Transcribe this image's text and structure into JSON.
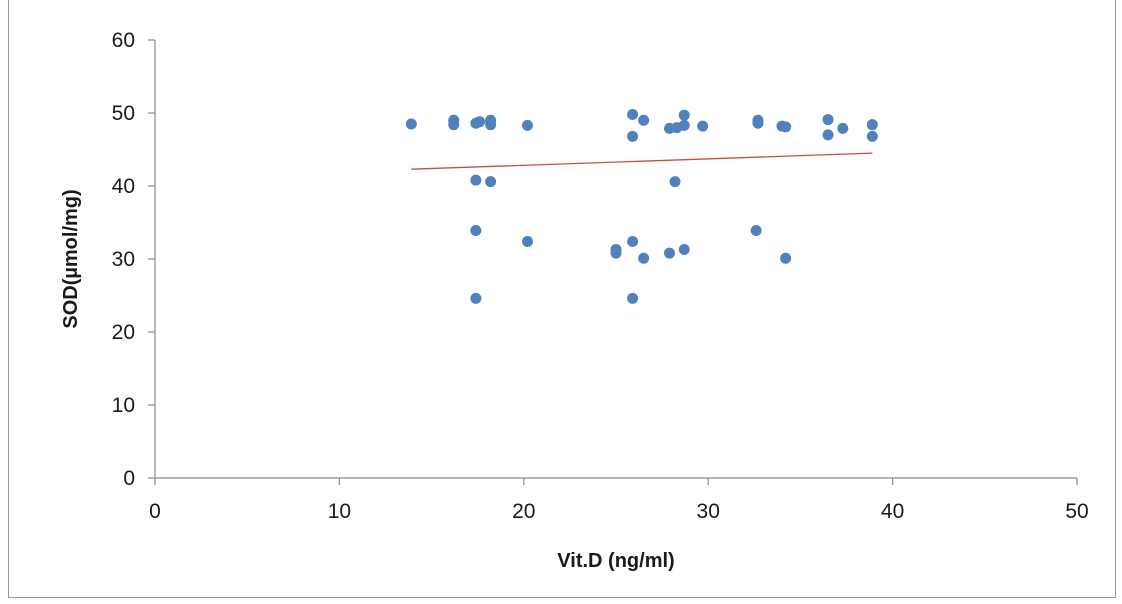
{
  "chart_data": {
    "type": "scatter",
    "title": "",
    "xlabel": "Vit.D (ng/ml)",
    "ylabel": "SOD(µmol/mg)",
    "xlim": [
      0,
      50
    ],
    "ylim": [
      0,
      60
    ],
    "xticks": [
      0,
      10,
      20,
      30,
      40,
      50
    ],
    "yticks": [
      0,
      10,
      20,
      30,
      40,
      50,
      60
    ],
    "grid": false,
    "legend": "none",
    "colors": {
      "points": "#4f81bd",
      "trendline": "#c0504d",
      "axis": "#8c8c8c"
    },
    "points": [
      [
        13.9,
        48.5
      ],
      [
        16.2,
        49.0
      ],
      [
        16.2,
        48.4
      ],
      [
        17.4,
        48.6
      ],
      [
        17.6,
        48.8
      ],
      [
        18.2,
        49.0
      ],
      [
        18.2,
        48.4
      ],
      [
        20.2,
        48.3
      ],
      [
        25.9,
        49.8
      ],
      [
        26.5,
        49.0
      ],
      [
        25.9,
        46.8
      ],
      [
        27.9,
        47.9
      ],
      [
        28.3,
        48.0
      ],
      [
        28.7,
        49.7
      ],
      [
        28.7,
        48.3
      ],
      [
        29.7,
        48.2
      ],
      [
        32.7,
        49.0
      ],
      [
        32.7,
        48.6
      ],
      [
        34.0,
        48.2
      ],
      [
        34.2,
        48.1
      ],
      [
        36.5,
        49.1
      ],
      [
        36.5,
        47.0
      ],
      [
        37.3,
        47.9
      ],
      [
        38.9,
        48.4
      ],
      [
        38.9,
        46.8
      ],
      [
        17.4,
        40.8
      ],
      [
        18.2,
        40.6
      ],
      [
        28.2,
        40.6
      ],
      [
        17.4,
        33.9
      ],
      [
        20.2,
        32.4
      ],
      [
        25.0,
        31.3
      ],
      [
        25.0,
        30.8
      ],
      [
        25.9,
        32.4
      ],
      [
        26.5,
        30.1
      ],
      [
        27.9,
        30.8
      ],
      [
        28.7,
        31.3
      ],
      [
        32.6,
        33.9
      ],
      [
        34.2,
        30.1
      ],
      [
        17.4,
        24.6
      ],
      [
        25.9,
        24.6
      ]
    ],
    "trendline": {
      "type": "linear",
      "x": [
        13.9,
        38.9
      ],
      "y": [
        42.3,
        44.5
      ]
    }
  }
}
